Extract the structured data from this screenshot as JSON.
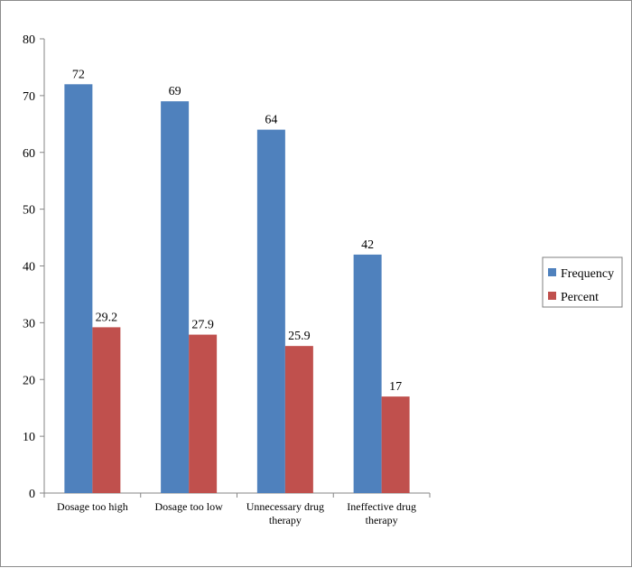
{
  "chart_data": {
    "type": "bar",
    "title": "",
    "xlabel": "",
    "ylabel": "",
    "ylim": [
      0,
      80
    ],
    "yticks": [
      0,
      10,
      20,
      30,
      40,
      50,
      60,
      70,
      80
    ],
    "grid": false,
    "legend_position": "right",
    "categories": [
      [
        "Dosage too high"
      ],
      [
        "Dosage too low"
      ],
      [
        "Unnecessary drug",
        "therapy"
      ],
      [
        "Ineffective drug",
        "therapy"
      ]
    ],
    "series": [
      {
        "name": "Frequency",
        "color": "#4F81BD",
        "values": [
          72,
          69,
          64,
          42
        ],
        "labels": [
          "72",
          "69",
          "64",
          "42"
        ]
      },
      {
        "name": "Percent",
        "color": "#C0504D",
        "values": [
          29.2,
          27.9,
          25.9,
          17
        ],
        "labels": [
          "29.2",
          "27.9",
          "25.9",
          "17"
        ]
      }
    ]
  }
}
